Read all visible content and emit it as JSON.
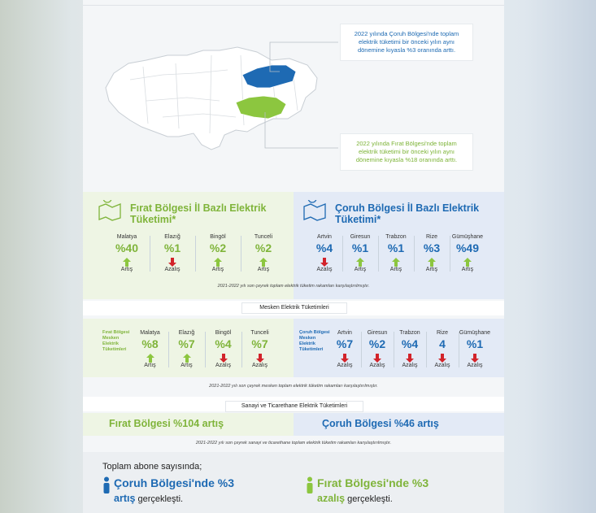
{
  "map": {
    "note_coruh": "2022 yılında Çoruh Bölgesi'nde toplam elektrik tüketimi bir önceki yılın aynı dönemine kıyasla %3 oranında arttı.",
    "note_firat": "2022 yılında Fırat Bölgesi'nde toplam elektrik tüketimi bir önceki yılın aynı dönemine kıyasla %18 oranında arttı.",
    "colors": {
      "coruh": "#1e6ab3",
      "firat": "#8cc63f"
    }
  },
  "sec1": {
    "firat_title": "Fırat Bölgesi İl Bazlı Elektrik Tüketimi*",
    "coruh_title": "Çoruh Bölgesi İl Bazlı Elektrik Tüketimi*",
    "firat": [
      {
        "name": "Malatya",
        "pct": "%40",
        "dir": "up",
        "label": "Artış"
      },
      {
        "name": "Elazığ",
        "pct": "%1",
        "dir": "down",
        "label": "Azalış"
      },
      {
        "name": "Bingöl",
        "pct": "%2",
        "dir": "up",
        "label": "Artış"
      },
      {
        "name": "Tunceli",
        "pct": "%2",
        "dir": "up",
        "label": "Artış"
      }
    ],
    "coruh": [
      {
        "name": "Artvin",
        "pct": "%4",
        "dir": "down",
        "label": "Azalış"
      },
      {
        "name": "Giresun",
        "pct": "%1",
        "dir": "up",
        "label": "Artış"
      },
      {
        "name": "Trabzon",
        "pct": "%1",
        "dir": "up",
        "label": "Artış"
      },
      {
        "name": "Rize",
        "pct": "%3",
        "dir": "up",
        "label": "Artış"
      },
      {
        "name": "Gümüşhane",
        "pct": "%49",
        "dir": "up",
        "label": "Artış"
      }
    ],
    "note": "2021-2022 yılı son çeyrek toplam elektrik tüketim rakamları karşılaştırılmıştır."
  },
  "sec2": {
    "title": "Mesken Elektrik Tüketimleri",
    "firat_label": "Fırat Bölgesi Mesken Elektrik Tüketimleri",
    "coruh_label": "Çoruh Bölgesi Mesken Elektrik Tüketimleri",
    "firat": [
      {
        "name": "Malatya",
        "pct": "%8",
        "dir": "up",
        "label": "Artış"
      },
      {
        "name": "Elazığ",
        "pct": "%7",
        "dir": "up",
        "label": "Artış"
      },
      {
        "name": "Bingöl",
        "pct": "%4",
        "dir": "down",
        "label": "Azalış"
      },
      {
        "name": "Tunceli",
        "pct": "%7",
        "dir": "down",
        "label": "Azalış"
      }
    ],
    "coruh": [
      {
        "name": "Artvin",
        "pct": "%7",
        "dir": "down",
        "label": "Azalış"
      },
      {
        "name": "Giresun",
        "pct": "%2",
        "dir": "down",
        "label": "Azalış"
      },
      {
        "name": "Trabzon",
        "pct": "%4",
        "dir": "down",
        "label": "Azalış"
      },
      {
        "name": "Rize",
        "pct": "4",
        "dir": "down",
        "label": "Azalış"
      },
      {
        "name": "Gümüşhane",
        "pct": "%1",
        "dir": "down",
        "label": "Azalış"
      }
    ],
    "note": "2021-2022 yılı son çeyrek mesken toplam elektrik tüketim rakamları karşılaştırılmıştır."
  },
  "sec3": {
    "title": "Sanayi ve Ticarethane Elektrik Tüketimleri",
    "firat": "Fırat Bölgesi %104 artış",
    "coruh": "Çoruh Bölgesi %46 artış",
    "note": "2021-2022 yılı son çeyrek sanayi ve ticarethane toplam elektrik tüketim rakamları karşılaştırılmıştır."
  },
  "bottom": {
    "intro": "Toplam abone sayısında;",
    "coruh_line1": "Çoruh Bölgesi'nde %3",
    "coruh_strong": "artış",
    "coruh_rest": " gerçekleşti.",
    "firat_line1": "Fırat Bölgesi'nde %3",
    "firat_strong": "azalış",
    "firat_rest": " gerçekleşti."
  }
}
